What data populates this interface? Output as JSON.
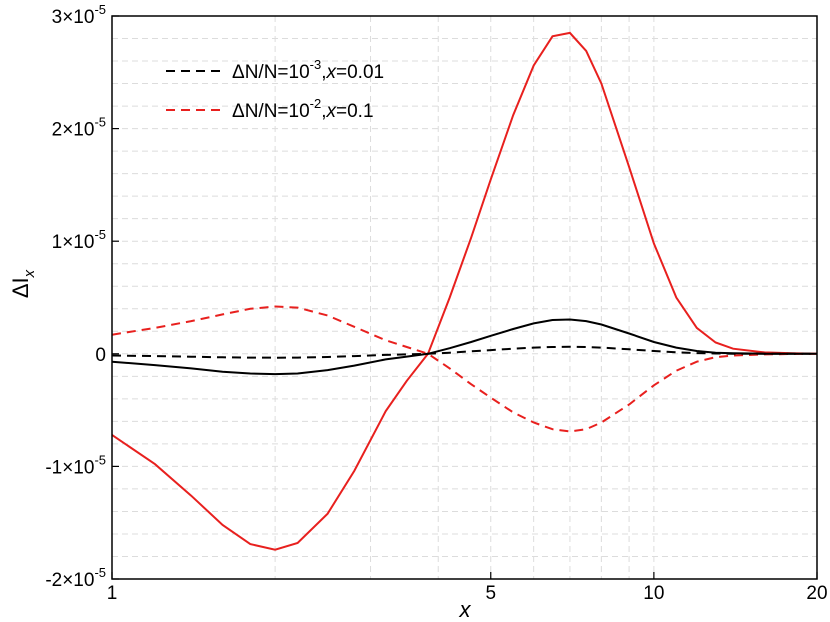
{
  "chart_data": {
    "type": "line",
    "xlabel": "x",
    "ylabel_main": "ΔI",
    "ylabel_sub": "x",
    "x_scale": "log",
    "xlim": [
      1,
      20
    ],
    "ylim": [
      -2e-05,
      3e-05
    ],
    "grid": true,
    "legend_position": "top-left",
    "x_ticks": [
      {
        "value": 1,
        "label": "1"
      },
      {
        "value": 5,
        "label": "5"
      },
      {
        "value": 10,
        "label": "10"
      },
      {
        "value": 20,
        "label": "20"
      }
    ],
    "y_ticks": [
      {
        "value": -2e-05,
        "mantissa": "-2×10",
        "exponent": "-5"
      },
      {
        "value": -1e-05,
        "mantissa": "-1×10",
        "exponent": "-5"
      },
      {
        "value": 0,
        "mantissa": "0",
        "exponent": ""
      },
      {
        "value": 1e-05,
        "mantissa": "1×10",
        "exponent": "-5"
      },
      {
        "value": 2e-05,
        "mantissa": "2×10",
        "exponent": "-5"
      },
      {
        "value": 3e-05,
        "mantissa": "3×10",
        "exponent": "-5"
      }
    ],
    "legend": [
      {
        "prefix": "ΔN/N=10",
        "exponent": "-3",
        "sep": ",",
        "var": "x",
        "suffix": "=0.01",
        "color": "#000000",
        "dash": "dashed"
      },
      {
        "prefix": "ΔN/N=10",
        "exponent": "-2",
        "sep": ",",
        "var": "x",
        "suffix": "=0.1",
        "color": "#e8201e",
        "dash": "dashed"
      }
    ],
    "series": [
      {
        "color": "#e8201e",
        "dash": "solid",
        "x": [
          1,
          1.2,
          1.4,
          1.6,
          1.8,
          2.0,
          2.2,
          2.5,
          2.8,
          3.2,
          3.5,
          3.83,
          4.2,
          4.6,
          5.0,
          5.5,
          6.0,
          6.5,
          7.0,
          7.5,
          8.0,
          9.0,
          10.0,
          11.0,
          12.0,
          13.0,
          14.0,
          16.0,
          18.0,
          20.0
        ],
        "y": [
          -7.2e-06,
          -9.8e-06,
          -1.26e-05,
          -1.52e-05,
          -1.69e-05,
          -1.74e-05,
          -1.68e-05,
          -1.42e-05,
          -1.04e-05,
          -5.1e-06,
          -2.4e-06,
          0,
          5e-06,
          1.03e-05,
          1.55e-05,
          2.12e-05,
          2.56e-05,
          2.82e-05,
          2.85e-05,
          2.69e-05,
          2.4e-05,
          1.66e-05,
          9.8e-06,
          5e-06,
          2.3e-06,
          1e-06,
          4.5e-07,
          1.2e-07,
          5e-08,
          1e-08
        ]
      },
      {
        "color": "#e8201e",
        "dash": "dashed",
        "x": [
          1,
          1.2,
          1.4,
          1.6,
          1.8,
          2.0,
          2.2,
          2.5,
          2.8,
          3.2,
          3.5,
          3.83,
          4.2,
          4.6,
          5.0,
          5.5,
          6.0,
          6.5,
          7.0,
          7.5,
          8.0,
          9.0,
          10.0,
          11.0,
          12.0,
          13.0,
          14.0,
          16.0,
          18.0,
          20.0
        ],
        "y": [
          1.7e-06,
          2.3e-06,
          2.9e-06,
          3.5e-06,
          4e-06,
          4.2e-06,
          4.1e-06,
          3.4e-06,
          2.4e-06,
          1.2e-06,
          6e-07,
          0,
          -1.3e-06,
          -2.7e-06,
          -3.9e-06,
          -5.2e-06,
          -6.1e-06,
          -6.7e-06,
          -6.9e-06,
          -6.7e-06,
          -6.1e-06,
          -4.5e-06,
          -2.8e-06,
          -1.5e-06,
          -7e-07,
          -3e-07,
          -1.5e-07,
          -5e-08,
          -2e-08,
          0
        ]
      },
      {
        "color": "#000000",
        "dash": "solid",
        "x": [
          1,
          1.2,
          1.4,
          1.6,
          1.8,
          2.0,
          2.2,
          2.5,
          2.8,
          3.2,
          3.5,
          3.83,
          4.2,
          4.6,
          5.0,
          5.5,
          6.0,
          6.5,
          7.0,
          7.5,
          8.0,
          9.0,
          10.0,
          11.0,
          12.0,
          13.0,
          14.0,
          16.0,
          18.0,
          20.0
        ],
        "y": [
          -7e-07,
          -1e-06,
          -1.3e-06,
          -1.6e-06,
          -1.75e-06,
          -1.8e-06,
          -1.75e-06,
          -1.45e-06,
          -1.05e-06,
          -5e-07,
          -2.5e-07,
          0,
          5e-07,
          1.05e-06,
          1.6e-06,
          2.2e-06,
          2.7e-06,
          3e-06,
          3.05e-06,
          2.9e-06,
          2.6e-06,
          1.8e-06,
          1.05e-06,
          5.5e-07,
          2.5e-07,
          1e-07,
          5e-08,
          1e-08,
          0,
          0
        ]
      },
      {
        "color": "#000000",
        "dash": "dashed",
        "x": [
          1,
          1.2,
          1.4,
          1.6,
          1.8,
          2.0,
          2.2,
          2.5,
          2.8,
          3.2,
          3.5,
          3.83,
          4.2,
          4.6,
          5.0,
          5.5,
          6.0,
          6.5,
          7.0,
          7.5,
          8.0,
          9.0,
          10.0,
          11.0,
          12.0,
          13.0,
          14.0,
          16.0,
          18.0,
          20.0
        ],
        "y": [
          -1.5e-07,
          -2e-07,
          -2.6e-07,
          -3.1e-07,
          -3.4e-07,
          -3.5e-07,
          -3.4e-07,
          -2.8e-07,
          -2e-07,
          -1e-07,
          -5e-08,
          0,
          1e-07,
          2.2e-07,
          3.3e-07,
          4.5e-07,
          5.5e-07,
          6e-07,
          6.2e-07,
          6e-07,
          5.5e-07,
          4e-07,
          2.5e-07,
          1.3e-07,
          6e-08,
          3e-08,
          1e-08,
          0,
          0,
          0
        ]
      }
    ]
  }
}
